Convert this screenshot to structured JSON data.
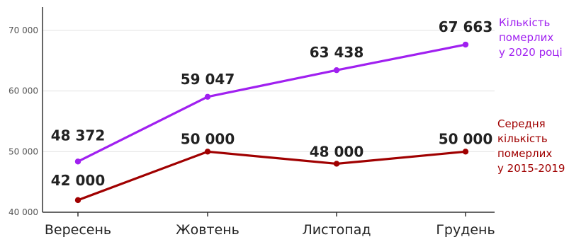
{
  "chart_data": {
    "type": "line",
    "categories": [
      "Вересень",
      "Жовтень",
      "Листопад",
      "Грудень"
    ],
    "ylim": [
      40000,
      70000
    ],
    "y_ticks": [
      40000,
      50000,
      60000,
      70000
    ],
    "y_tick_labels": [
      "40 000",
      "50 000",
      "60 000",
      "70 000"
    ],
    "grid": true,
    "legend_placement": "right",
    "series": [
      {
        "name": "Кількість померлих у 2020 році",
        "name_lines": [
          "Кількість",
          "померлих",
          "у 2020 році"
        ],
        "values": [
          48372,
          59047,
          63438,
          67663
        ],
        "labels": [
          "48 372",
          "59 047",
          "63 438",
          "67 663"
        ],
        "color": "#a020f0"
      },
      {
        "name": "Середня кількість померлих у 2015-2019",
        "name_lines": [
          "Середня",
          "кількість",
          "померлих",
          "у 2015-2019"
        ],
        "values": [
          42000,
          50000,
          48000,
          50000
        ],
        "labels": [
          "42 000",
          "50 000",
          "48 000",
          "50 000"
        ],
        "color": "#a00000"
      }
    ]
  }
}
